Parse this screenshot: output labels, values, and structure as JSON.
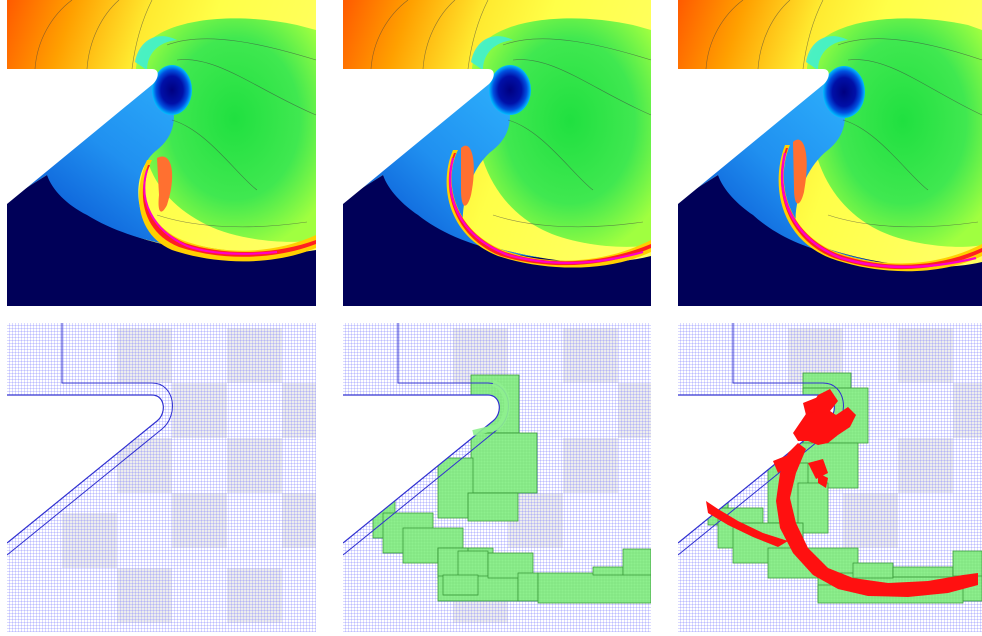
{
  "figure": {
    "colormap": [
      "#000058",
      "#0030c0",
      "#1e90ff",
      "#00e0e0",
      "#00e050",
      "#c8ff30",
      "#ffff40",
      "#ff9a00",
      "#ff1010",
      "#ff00c8"
    ],
    "mesh_line_color": "#5a5aff",
    "refined_patch_color": "#8ef08e",
    "tagged_cell_color": "#ff1010",
    "wedge_color": "#ffffff",
    "panels": [
      {
        "row": "top",
        "kind": "density-contour",
        "column": 1
      },
      {
        "row": "top",
        "kind": "density-contour",
        "column": 2
      },
      {
        "row": "top",
        "kind": "density-contour",
        "column": 3
      },
      {
        "row": "bottom",
        "kind": "adaptive-mesh",
        "column": 1,
        "show_patches": false,
        "show_tags": false
      },
      {
        "row": "bottom",
        "kind": "adaptive-mesh",
        "column": 2,
        "show_patches": true,
        "show_tags": false
      },
      {
        "row": "bottom",
        "kind": "adaptive-mesh",
        "column": 3,
        "show_patches": true,
        "show_tags": true
      }
    ]
  }
}
